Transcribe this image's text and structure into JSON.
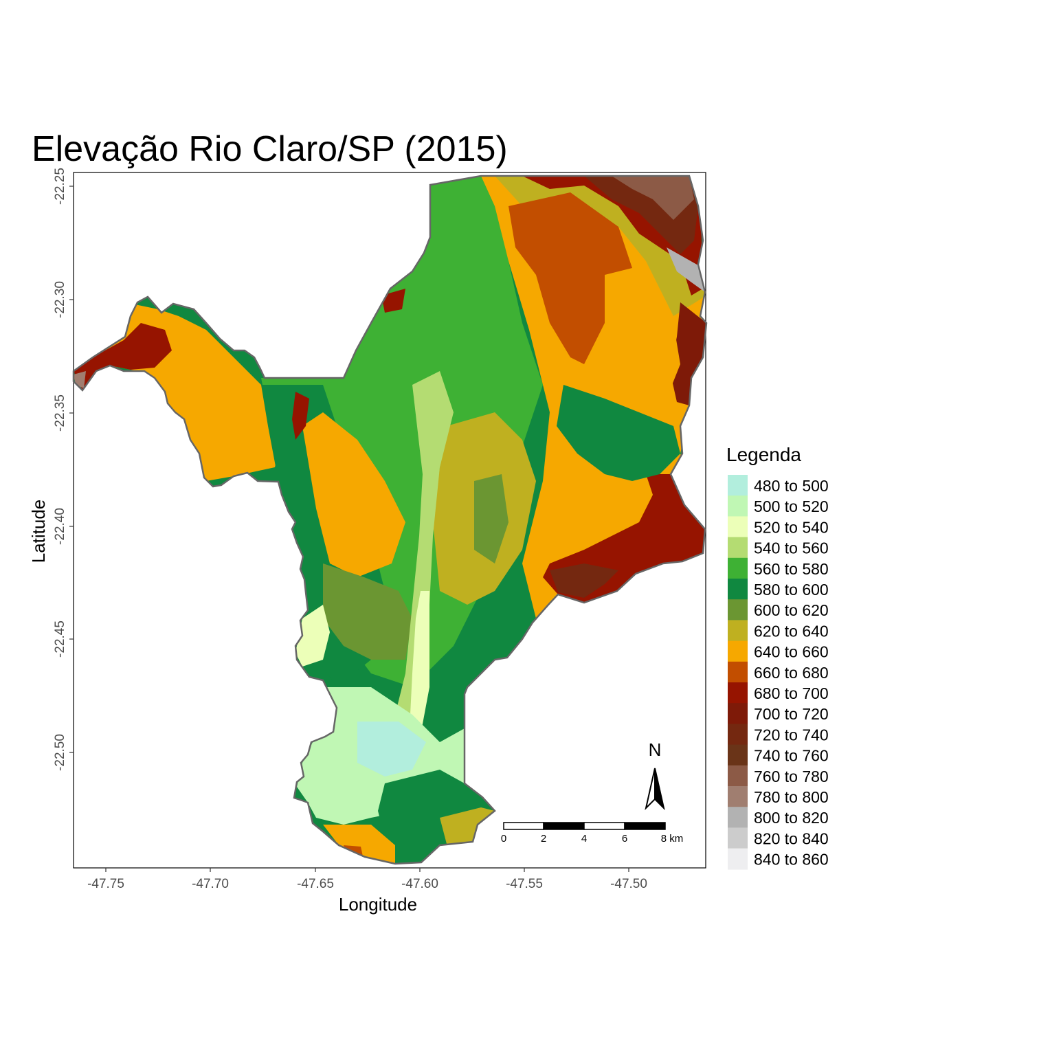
{
  "title": "Elevação Rio Claro/SP (2015)",
  "axes": {
    "x_title": "Longitude",
    "y_title": "Latitude",
    "x_ticks": [
      "-47.75",
      "-47.70",
      "-47.65",
      "-47.60",
      "-47.55",
      "-47.50"
    ],
    "y_ticks": [
      "-22.25",
      "-22.30",
      "-22.35",
      "-22.40",
      "-22.45",
      "-22.50"
    ]
  },
  "legend": {
    "title": "Legenda",
    "items": [
      {
        "label": "480 to 500",
        "color": "#b2eedd"
      },
      {
        "label": "500 to 520",
        "color": "#c0f7b4"
      },
      {
        "label": "520 to 540",
        "color": "#ecffb8"
      },
      {
        "label": "540 to 560",
        "color": "#b4dc72"
      },
      {
        "label": "560 to 580",
        "color": "#3eb134"
      },
      {
        "label": "580 to 600",
        "color": "#108840"
      },
      {
        "label": "600 to 620",
        "color": "#6b9632"
      },
      {
        "label": "620 to 640",
        "color": "#bfb020"
      },
      {
        "label": "640 to 660",
        "color": "#f6a800"
      },
      {
        "label": "660 to 680",
        "color": "#c24e00"
      },
      {
        "label": "680 to 700",
        "color": "#961400"
      },
      {
        "label": "700 to 720",
        "color": "#7e1a08"
      },
      {
        "label": "720 to 740",
        "color": "#742810"
      },
      {
        "label": "740 to 760",
        "color": "#6a3418"
      },
      {
        "label": "760 to 780",
        "color": "#8c5a46"
      },
      {
        "label": "780 to 800",
        "color": "#a07e70"
      },
      {
        "label": "800 to 820",
        "color": "#b2b2b2"
      },
      {
        "label": "820 to 840",
        "color": "#cccccc"
      },
      {
        "label": "840 to 860",
        "color": "#eeeef0"
      }
    ]
  },
  "scale_bar": {
    "ticks": [
      "0",
      "2",
      "4",
      "6",
      "8 km"
    ]
  },
  "north_arrow": {
    "label": "N"
  }
}
